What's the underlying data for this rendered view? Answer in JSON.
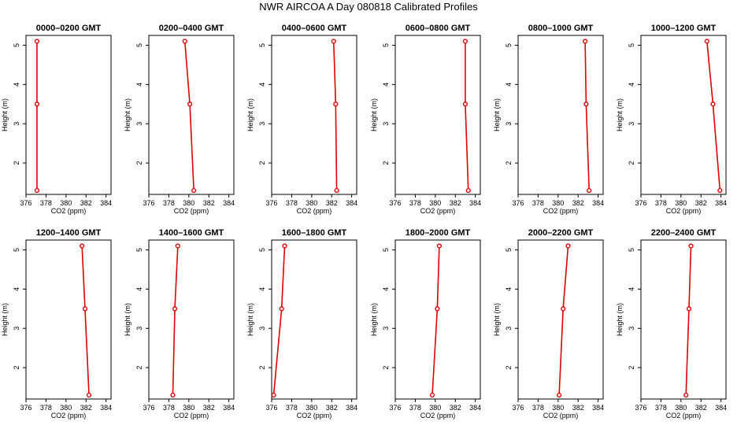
{
  "figure": {
    "title": "NWR AIRCOA A  Day 080818  Calibrated Profiles"
  },
  "style": {
    "line_color": "#e00000",
    "marker_color": "#e00000",
    "axis_color": "#000000"
  },
  "chart_data": [
    {
      "type": "line",
      "title": "0000–0200 GMT",
      "xlabel": "CO2 (ppm)",
      "ylabel": "Height (m)",
      "xlim": [
        376,
        384.5
      ],
      "ylim": [
        1.2,
        5.25
      ],
      "xticks": [
        376,
        378,
        380,
        382,
        384
      ],
      "yticks": [
        2,
        3,
        4,
        5
      ],
      "x": [
        377.1,
        377.1,
        377.1
      ],
      "y": [
        5.1,
        3.5,
        1.3
      ]
    },
    {
      "type": "line",
      "title": "0200–0400 GMT",
      "xlabel": "CO2 (ppm)",
      "ylabel": "Height (m)",
      "xlim": [
        376,
        384.5
      ],
      "ylim": [
        1.2,
        5.25
      ],
      "xticks": [
        376,
        378,
        380,
        382,
        384
      ],
      "yticks": [
        2,
        3,
        4,
        5
      ],
      "x": [
        379.6,
        380.1,
        380.5
      ],
      "y": [
        5.1,
        3.5,
        1.3
      ]
    },
    {
      "type": "line",
      "title": "0400–0600 GMT",
      "xlabel": "CO2 (ppm)",
      "ylabel": "Height (m)",
      "xlim": [
        376,
        384.5
      ],
      "ylim": [
        1.2,
        5.25
      ],
      "xticks": [
        376,
        378,
        380,
        382,
        384
      ],
      "yticks": [
        2,
        3,
        4,
        5
      ],
      "x": [
        382.2,
        382.4,
        382.5
      ],
      "y": [
        5.1,
        3.5,
        1.3
      ]
    },
    {
      "type": "line",
      "title": "0600–0800 GMT",
      "xlabel": "CO2 (ppm)",
      "ylabel": "Height (m)",
      "xlim": [
        376,
        384.5
      ],
      "ylim": [
        1.2,
        5.25
      ],
      "xticks": [
        376,
        378,
        380,
        382,
        384
      ],
      "yticks": [
        2,
        3,
        4,
        5
      ],
      "x": [
        383.0,
        383.0,
        383.3
      ],
      "y": [
        5.1,
        3.5,
        1.3
      ]
    },
    {
      "type": "line",
      "title": "0800–1000 GMT",
      "xlabel": "CO2 (ppm)",
      "ylabel": "Height (m)",
      "xlim": [
        376,
        384.5
      ],
      "ylim": [
        1.2,
        5.25
      ],
      "xticks": [
        376,
        378,
        380,
        382,
        384
      ],
      "yticks": [
        2,
        3,
        4,
        5
      ],
      "x": [
        382.7,
        382.8,
        383.1
      ],
      "y": [
        5.1,
        3.5,
        1.3
      ]
    },
    {
      "type": "line",
      "title": "1000–1200 GMT",
      "xlabel": "CO2 (ppm)",
      "ylabel": "Height (m)",
      "xlim": [
        376,
        384.5
      ],
      "ylim": [
        1.2,
        5.25
      ],
      "xticks": [
        376,
        378,
        380,
        382,
        384
      ],
      "yticks": [
        2,
        3,
        4,
        5
      ],
      "x": [
        382.6,
        383.2,
        383.9
      ],
      "y": [
        5.1,
        3.5,
        1.3
      ]
    },
    {
      "type": "line",
      "title": "1200–1400 GMT",
      "xlabel": "CO2 (ppm)",
      "ylabel": "Height (m)",
      "xlim": [
        376,
        384.5
      ],
      "ylim": [
        1.2,
        5.25
      ],
      "xticks": [
        376,
        378,
        380,
        382,
        384
      ],
      "yticks": [
        2,
        3,
        4,
        5
      ],
      "x": [
        381.6,
        381.9,
        382.3
      ],
      "y": [
        5.1,
        3.5,
        1.3
      ]
    },
    {
      "type": "line",
      "title": "1400–1600 GMT",
      "xlabel": "CO2 (ppm)",
      "ylabel": "Height (m)",
      "xlim": [
        376,
        384.5
      ],
      "ylim": [
        1.2,
        5.25
      ],
      "xticks": [
        376,
        378,
        380,
        382,
        384
      ],
      "yticks": [
        2,
        3,
        4,
        5
      ],
      "x": [
        378.9,
        378.6,
        378.4
      ],
      "y": [
        5.1,
        3.5,
        1.3
      ]
    },
    {
      "type": "line",
      "title": "1600–1800 GMT",
      "xlabel": "CO2 (ppm)",
      "ylabel": "Height (m)",
      "xlim": [
        376,
        384.5
      ],
      "ylim": [
        1.2,
        5.25
      ],
      "xticks": [
        376,
        378,
        380,
        382,
        384
      ],
      "yticks": [
        2,
        3,
        4,
        5
      ],
      "x": [
        377.3,
        377.0,
        376.2
      ],
      "y": [
        5.1,
        3.5,
        1.3
      ]
    },
    {
      "type": "line",
      "title": "1800–2000 GMT",
      "xlabel": "CO2 (ppm)",
      "ylabel": "Height (m)",
      "xlim": [
        376,
        384.5
      ],
      "ylim": [
        1.2,
        5.25
      ],
      "xticks": [
        376,
        378,
        380,
        382,
        384
      ],
      "yticks": [
        2,
        3,
        4,
        5
      ],
      "x": [
        380.4,
        380.2,
        379.7
      ],
      "y": [
        5.1,
        3.5,
        1.3
      ]
    },
    {
      "type": "line",
      "title": "2000–2200 GMT",
      "xlabel": "CO2 (ppm)",
      "ylabel": "Height (m)",
      "xlim": [
        376,
        384.5
      ],
      "ylim": [
        1.2,
        5.25
      ],
      "xticks": [
        376,
        378,
        380,
        382,
        384
      ],
      "yticks": [
        2,
        3,
        4,
        5
      ],
      "x": [
        381.0,
        380.5,
        380.1
      ],
      "y": [
        5.1,
        3.5,
        1.3
      ]
    },
    {
      "type": "line",
      "title": "2200–2400 GMT",
      "xlabel": "CO2 (ppm)",
      "ylabel": "Height (m)",
      "xlim": [
        376,
        384.5
      ],
      "ylim": [
        1.2,
        5.25
      ],
      "xticks": [
        376,
        378,
        380,
        382,
        384
      ],
      "yticks": [
        2,
        3,
        4,
        5
      ],
      "x": [
        381.0,
        380.8,
        380.5
      ],
      "y": [
        5.1,
        3.5,
        1.3
      ]
    }
  ]
}
